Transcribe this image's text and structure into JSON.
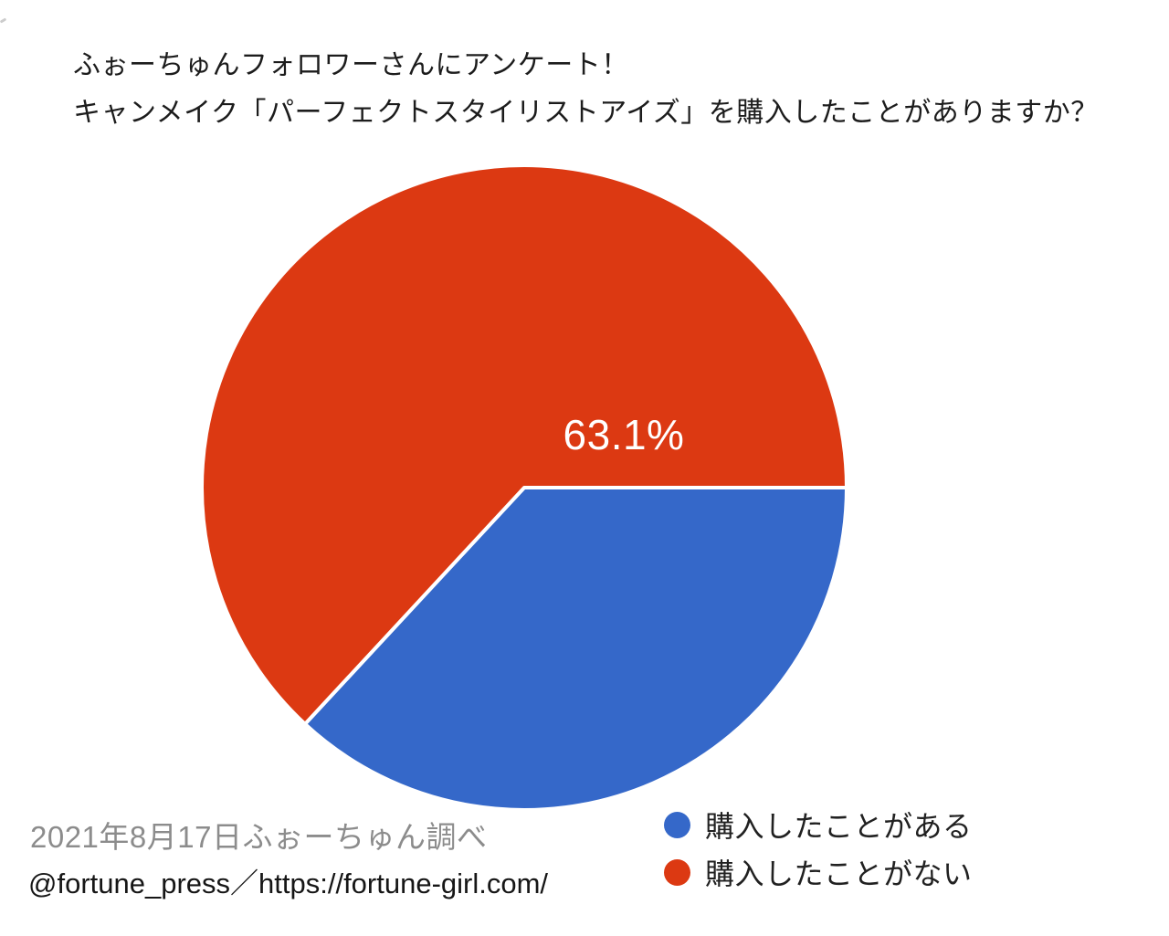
{
  "title": {
    "line1": "ふぉーちゅんフォロワーさんにアンケート！",
    "line2": "キャンメイク「パーフェクトスタイリストアイズ」を購入したことがありますか？"
  },
  "chart_data": {
    "type": "pie",
    "title": "キャンメイク「パーフェクトスタイリストアイズ」を購入したことがありますか？",
    "start_angle_deg": 90,
    "direction": "clockwise",
    "slices": [
      {
        "label": "購入したことがある",
        "value": 36.9,
        "display": "36.9%",
        "color": "#3568c9"
      },
      {
        "label": "購入したことがない",
        "value": 63.1,
        "display": "63.1%",
        "color": "#dc3912"
      }
    ],
    "slice_label_color": "#ffffff",
    "slice_border_color": "#ffffff",
    "legend_position": "bottom-right",
    "background": "#ffffff"
  },
  "footer": {
    "survey_note": "2021年8月17日ふぉーちゅん調べ",
    "credit": "@fortune_press／https://fortune-girl.com/"
  }
}
